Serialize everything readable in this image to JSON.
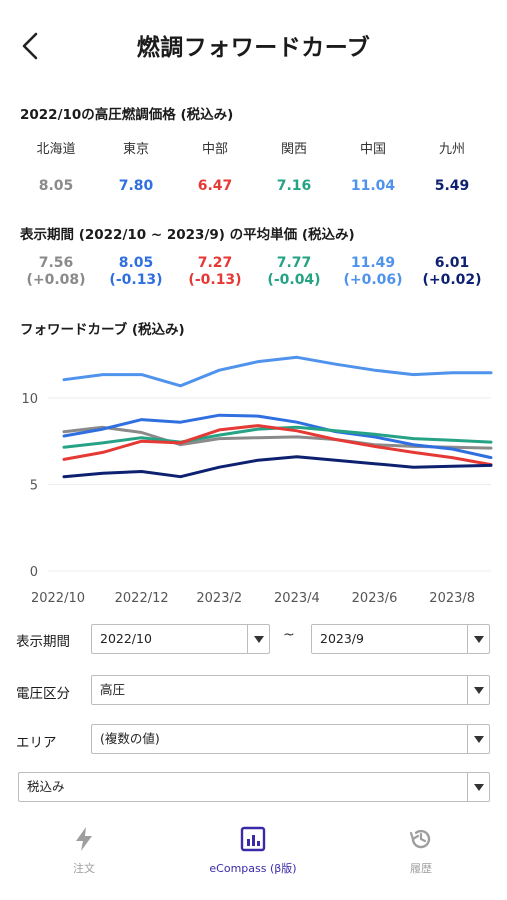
{
  "header": {
    "title": "燃調フォワードカーブ"
  },
  "current_price": {
    "title": "2022/10の高圧燃調価格 (税込み)"
  },
  "areas": [
    {
      "name": "北海道",
      "price": "8.05",
      "avg": "7.56",
      "diff": "(+0.08)",
      "color": "#8a8a8a",
      "diff_color": "#8a8a8a"
    },
    {
      "name": "東京",
      "price": "7.80",
      "avg": "8.05",
      "diff": "(-0.13)",
      "color": "#2f6fe0",
      "diff_color": "#2f6fe0"
    },
    {
      "name": "中部",
      "price": "6.47",
      "avg": "7.27",
      "diff": "(-0.13)",
      "color": "#e53935",
      "diff_color": "#e53935"
    },
    {
      "name": "関西",
      "price": "7.16",
      "avg": "7.77",
      "diff": "(-0.04)",
      "color": "#26a285",
      "diff_color": "#26a285"
    },
    {
      "name": "中国",
      "price": "11.04",
      "avg": "11.49",
      "diff": "(+0.06)",
      "color": "#4f93ec",
      "diff_color": "#4f93ec"
    },
    {
      "name": "九州",
      "price": "5.49",
      "avg": "6.01",
      "diff": "(+0.02)",
      "color": "#0d2170",
      "diff_color": "#0d2170"
    }
  ],
  "average": {
    "title": "表示期間 (2022/10 ~ 2023/9) の平均単価 (税込み)"
  },
  "forward_curve": {
    "title": "フォワードカーブ (税込み)"
  },
  "chart_data": {
    "type": "line",
    "title": "",
    "xlabel": "",
    "ylabel": "",
    "x": [
      "2022/10",
      "2022/11",
      "2022/12",
      "2023/1",
      "2023/2",
      "2023/3",
      "2023/4",
      "2023/5",
      "2023/6",
      "2023/7",
      "2023/8",
      "2023/9"
    ],
    "x_tick_labels": [
      "2022/10",
      "2022/12",
      "2023/2",
      "2023/4",
      "2023/6",
      "2023/8"
    ],
    "y_ticks": [
      "0",
      "5",
      "10"
    ],
    "ylim": [
      0,
      13
    ],
    "grid": true,
    "series": [
      {
        "color": "#4f93ec",
        "values": [
          11.05,
          11.35,
          11.35,
          10.7,
          11.6,
          12.1,
          12.35,
          11.95,
          11.6,
          11.35,
          11.45,
          11.45
        ]
      },
      {
        "color": "#8a8a8a",
        "values": [
          8.05,
          8.3,
          8.0,
          7.3,
          7.65,
          7.7,
          7.75,
          7.6,
          7.3,
          7.2,
          7.15,
          7.1
        ]
      },
      {
        "color": "#2f6fe0",
        "values": [
          7.8,
          8.2,
          8.75,
          8.6,
          9.0,
          8.95,
          8.6,
          8.05,
          7.75,
          7.3,
          7.05,
          6.55
        ]
      },
      {
        "color": "#26a285",
        "values": [
          7.15,
          7.4,
          7.7,
          7.45,
          7.85,
          8.2,
          8.3,
          8.1,
          7.9,
          7.65,
          7.55,
          7.45
        ]
      },
      {
        "color": "#e53935",
        "values": [
          6.45,
          6.85,
          7.5,
          7.4,
          8.15,
          8.4,
          8.1,
          7.6,
          7.2,
          6.85,
          6.55,
          6.15
        ]
      },
      {
        "color": "#0d2170",
        "values": [
          5.45,
          5.65,
          5.75,
          5.45,
          6.0,
          6.4,
          6.6,
          6.4,
          6.2,
          6.0,
          6.05,
          6.1
        ]
      }
    ]
  },
  "form": {
    "period_label": "表示期間",
    "period_start": "2022/10",
    "tilde": "~",
    "period_end": "2023/9",
    "voltage_label": "電圧区分",
    "voltage_value": "高圧",
    "area_label": "エリア",
    "area_value": "(複数の値)",
    "tax_value": "税込み"
  },
  "nav": {
    "order_label": "注文",
    "ecompass_label": "eCompass (β版)",
    "history_label": "履歴",
    "active_color": "#3a2aa8",
    "inactive_color": "#9e9e9e"
  }
}
